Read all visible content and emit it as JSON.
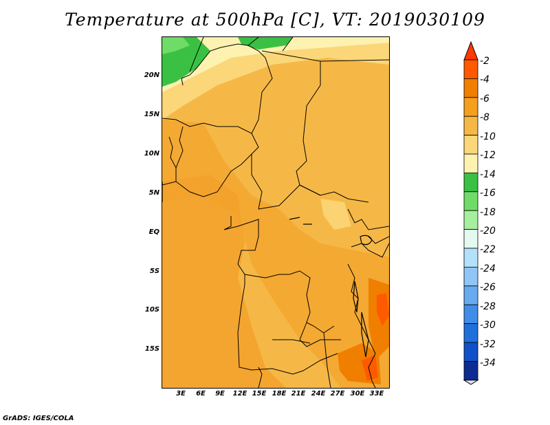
{
  "title": "Temperature at 500hPa [C], VT: 2019030109",
  "credit": "GrADS: IGES/COLA",
  "map": {
    "lat_labels": [
      "20N",
      "15N",
      "10N",
      "5N",
      "EQ",
      "5S",
      "10S",
      "15S"
    ],
    "lon_labels": [
      "3E",
      "6E",
      "9E",
      "12E",
      "15E",
      "18E",
      "21E",
      "24E",
      "27E",
      "30E",
      "33E"
    ]
  },
  "colorbar": {
    "labels": [
      "-2",
      "-4",
      "-6",
      "-8",
      "-10",
      "-12",
      "-14",
      "-16",
      "-18",
      "-20",
      "-22",
      "-24",
      "-26",
      "-28",
      "-30",
      "-32",
      "-34"
    ],
    "colors": [
      "#ff5a00",
      "#f07f00",
      "#f59f1f",
      "#f5b847",
      "#fbd77a",
      "#fdf2b0",
      "#3ac144",
      "#6fdc68",
      "#a6ef9e",
      "#e4faf0",
      "#b4e1fa",
      "#90c6f5",
      "#68aaf0",
      "#3f8de8",
      "#2070dc",
      "#1150c8",
      "#0c2c90"
    ],
    "over_color": "#ff3a00",
    "under_color": "#dcdcff"
  }
}
